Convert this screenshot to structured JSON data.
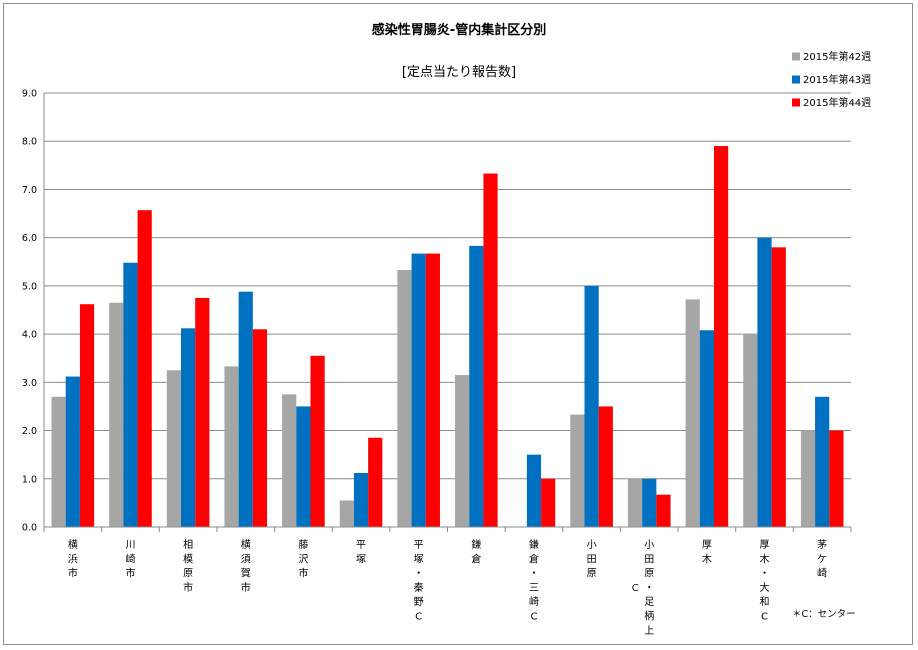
{
  "chart_data": {
    "type": "bar",
    "title": "感染性胃腸炎-管内集計区分別",
    "subtitle": "[定点当たり報告数]",
    "xlabel": "",
    "ylabel": "",
    "ylim": [
      0,
      9
    ],
    "yticks": [
      "0.0",
      "1.0",
      "2.0",
      "3.0",
      "4.0",
      "5.0",
      "6.0",
      "7.0",
      "8.0",
      "9.0"
    ],
    "grid": true,
    "legend_position": "top-right",
    "footnote": "＊C：センター",
    "categories": [
      [
        "横",
        "浜",
        "市"
      ],
      [
        "川",
        "崎",
        "市"
      ],
      [
        "相",
        "模",
        "原",
        "市"
      ],
      [
        "横",
        "須",
        "賀",
        "市"
      ],
      [
        "藤",
        "沢",
        "市"
      ],
      [
        "平",
        "塚"
      ],
      [
        "平",
        "塚",
        "・",
        "秦",
        "野",
        "C"
      ],
      [
        "鎌",
        "倉"
      ],
      [
        "鎌",
        "倉",
        "・",
        "三",
        "崎",
        "C"
      ],
      [
        "小",
        "田",
        "原"
      ],
      [
        "小",
        "田",
        "原",
        "・",
        "足",
        "柄",
        "上"
      ],
      [
        "厚",
        "木"
      ],
      [
        "厚",
        "木",
        "・",
        "大",
        "和",
        "C"
      ],
      [
        "茅",
        "ケ",
        "崎"
      ]
    ],
    "category_side_labels": [
      {
        "index": 10,
        "text": "C"
      }
    ],
    "series": [
      {
        "name": "2015年第42週",
        "color": "#a6a6a6",
        "values": [
          2.7,
          4.65,
          3.25,
          3.33,
          2.75,
          0.55,
          5.33,
          3.15,
          0.0,
          2.33,
          1.0,
          4.72,
          4.0,
          2.0
        ]
      },
      {
        "name": "2015年第43週",
        "color": "#0070c0",
        "values": [
          3.12,
          5.48,
          4.12,
          4.88,
          2.5,
          1.12,
          5.67,
          5.83,
          1.5,
          5.0,
          1.0,
          4.08,
          6.0,
          2.7
        ]
      },
      {
        "name": "2015年第44週",
        "color": "#ff0000",
        "values": [
          4.62,
          6.57,
          4.75,
          4.1,
          3.55,
          1.85,
          5.67,
          7.33,
          1.0,
          2.5,
          0.67,
          7.9,
          5.8,
          2.0
        ]
      }
    ]
  }
}
